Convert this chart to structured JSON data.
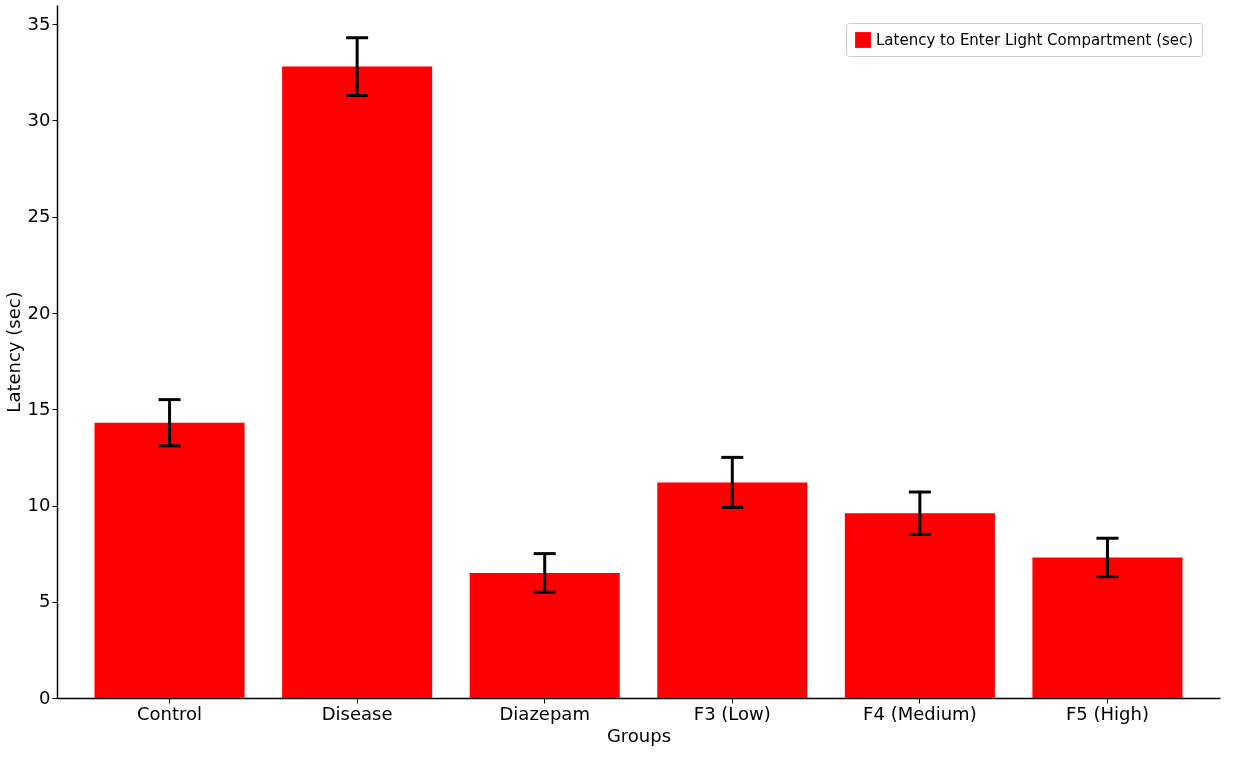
{
  "chart_data": {
    "type": "bar",
    "xlabel": "Groups",
    "ylabel": "Latency (sec)",
    "categories": [
      "Control",
      "Disease",
      "Diazepam",
      "F3 (Low)",
      "F4 (Medium)",
      "F5 (High)"
    ],
    "series": [
      {
        "name": "Latency to Enter Light Compartment (sec)",
        "color": "#ff0000",
        "values": [
          14.3,
          32.8,
          6.5,
          11.2,
          9.6,
          7.3
        ],
        "errors": [
          1.2,
          1.5,
          1.0,
          1.3,
          1.1,
          1.0
        ]
      }
    ],
    "ylim": [
      0,
      36
    ],
    "yticks": [
      0,
      5,
      10,
      15,
      20,
      25,
      30,
      35
    ],
    "grid": false,
    "legend": "top right"
  }
}
